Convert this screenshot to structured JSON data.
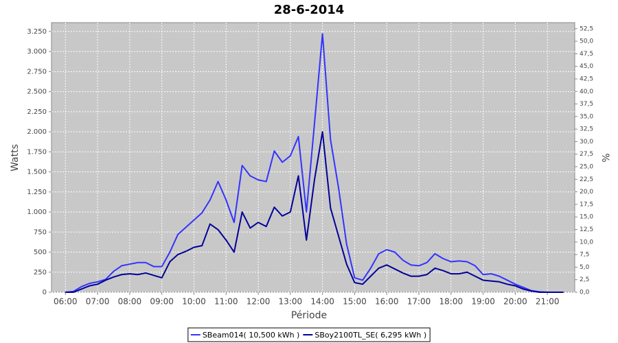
{
  "chart_data": {
    "type": "line",
    "title": "28-6-2014",
    "x_label": "Période",
    "y_label": "Watts",
    "y2_label": "%",
    "x": [
      "06:00",
      "06:15",
      "06:30",
      "06:45",
      "07:00",
      "07:15",
      "07:30",
      "07:45",
      "08:00",
      "08:15",
      "08:30",
      "08:45",
      "09:00",
      "09:15",
      "09:30",
      "09:45",
      "10:00",
      "10:15",
      "10:30",
      "10:45",
      "11:00",
      "11:15",
      "11:30",
      "11:45",
      "12:00",
      "12:15",
      "12:30",
      "12:45",
      "13:00",
      "13:15",
      "13:30",
      "13:45",
      "14:00",
      "14:15",
      "14:30",
      "14:45",
      "15:00",
      "15:15",
      "15:30",
      "15:45",
      "16:00",
      "16:15",
      "16:30",
      "16:45",
      "17:00",
      "17:15",
      "17:30",
      "17:45",
      "18:00",
      "18:15",
      "18:30",
      "18:45",
      "19:00",
      "19:15",
      "19:30",
      "19:45",
      "20:00",
      "20:15",
      "20:30",
      "20:45",
      "21:00",
      "21:15",
      "21:30"
    ],
    "series": [
      {
        "name": "SBeam014( 10,500 kWh )",
        "color": "#3333ff",
        "values": [
          0,
          10,
          70,
          110,
          130,
          160,
          260,
          330,
          350,
          370,
          370,
          320,
          320,
          500,
          720,
          810,
          900,
          990,
          1150,
          1380,
          1150,
          870,
          1580,
          1450,
          1400,
          1380,
          1760,
          1620,
          1700,
          1940,
          1000,
          2100,
          3220,
          1900,
          1300,
          600,
          180,
          150,
          300,
          480,
          530,
          500,
          400,
          340,
          330,
          370,
          480,
          420,
          380,
          390,
          380,
          330,
          220,
          230,
          200,
          150,
          100,
          60,
          20,
          5,
          0,
          0,
          0
        ]
      },
      {
        "name": "SBoy2100TL_SE( 6,295 kWh )",
        "color": "#000099",
        "values": [
          0,
          0,
          40,
          80,
          100,
          150,
          190,
          220,
          230,
          220,
          240,
          210,
          180,
          380,
          470,
          510,
          560,
          580,
          850,
          780,
          650,
          500,
          1000,
          800,
          870,
          820,
          1060,
          950,
          1000,
          1450,
          650,
          1400,
          2000,
          1050,
          700,
          350,
          120,
          100,
          200,
          300,
          340,
          290,
          240,
          200,
          200,
          220,
          300,
          270,
          230,
          230,
          250,
          200,
          150,
          140,
          130,
          100,
          80,
          40,
          15,
          0,
          0,
          0,
          0
        ]
      }
    ],
    "xlim": [
      "05:34",
      "21:51"
    ],
    "xticks": [
      "06:00",
      "07:00",
      "08:00",
      "09:00",
      "10:00",
      "11:00",
      "12:00",
      "13:00",
      "14:00",
      "15:00",
      "16:00",
      "17:00",
      "18:00",
      "19:00",
      "20:00",
      "21:00"
    ],
    "ylim": [
      0,
      3360
    ],
    "yticks": [
      0,
      250,
      500,
      750,
      {
        "value": 1000,
        "label": "1.000"
      },
      {
        "value": 1250,
        "label": "1.250"
      },
      {
        "value": 1500,
        "label": "1.500"
      },
      {
        "value": 1750,
        "label": "1.750"
      },
      {
        "value": 2000,
        "label": "2.000"
      },
      {
        "value": 2250,
        "label": "2.250"
      },
      {
        "value": 2500,
        "label": "2.500"
      },
      {
        "value": 2750,
        "label": "2.750"
      },
      {
        "value": 3000,
        "label": "3.000"
      },
      {
        "value": 3250,
        "label": "3.250"
      }
    ],
    "y2lim": [
      0,
      53.7
    ],
    "y2ticks": [
      {
        "value": 0,
        "label": "0,0"
      },
      {
        "value": 2.5,
        "label": "2,5"
      },
      {
        "value": 5,
        "label": "5,0"
      },
      {
        "value": 7.5,
        "label": "7,5"
      },
      {
        "value": 10,
        "label": "10,0"
      },
      {
        "value": 12.5,
        "label": "12,5"
      },
      {
        "value": 15,
        "label": "15,0"
      },
      {
        "value": 17.5,
        "label": "17,5"
      },
      {
        "value": 20,
        "label": "20,0"
      },
      {
        "value": 22.5,
        "label": "22,5"
      },
      {
        "value": 25,
        "label": "25,0"
      },
      {
        "value": 27.5,
        "label": "27,5"
      },
      {
        "value": 30,
        "label": "30,0"
      },
      {
        "value": 32.5,
        "label": "32,5"
      },
      {
        "value": 35,
        "label": "35,0"
      },
      {
        "value": 37.5,
        "label": "37,5"
      },
      {
        "value": 40,
        "label": "40,0"
      },
      {
        "value": 42.5,
        "label": "42,5"
      },
      {
        "value": 45,
        "label": "45,0"
      },
      {
        "value": 47.5,
        "label": "47,5"
      },
      {
        "value": 50,
        "label": "50,0"
      },
      {
        "value": 52.5,
        "label": "52,5"
      }
    ],
    "grid": true,
    "legend": "bottom"
  }
}
